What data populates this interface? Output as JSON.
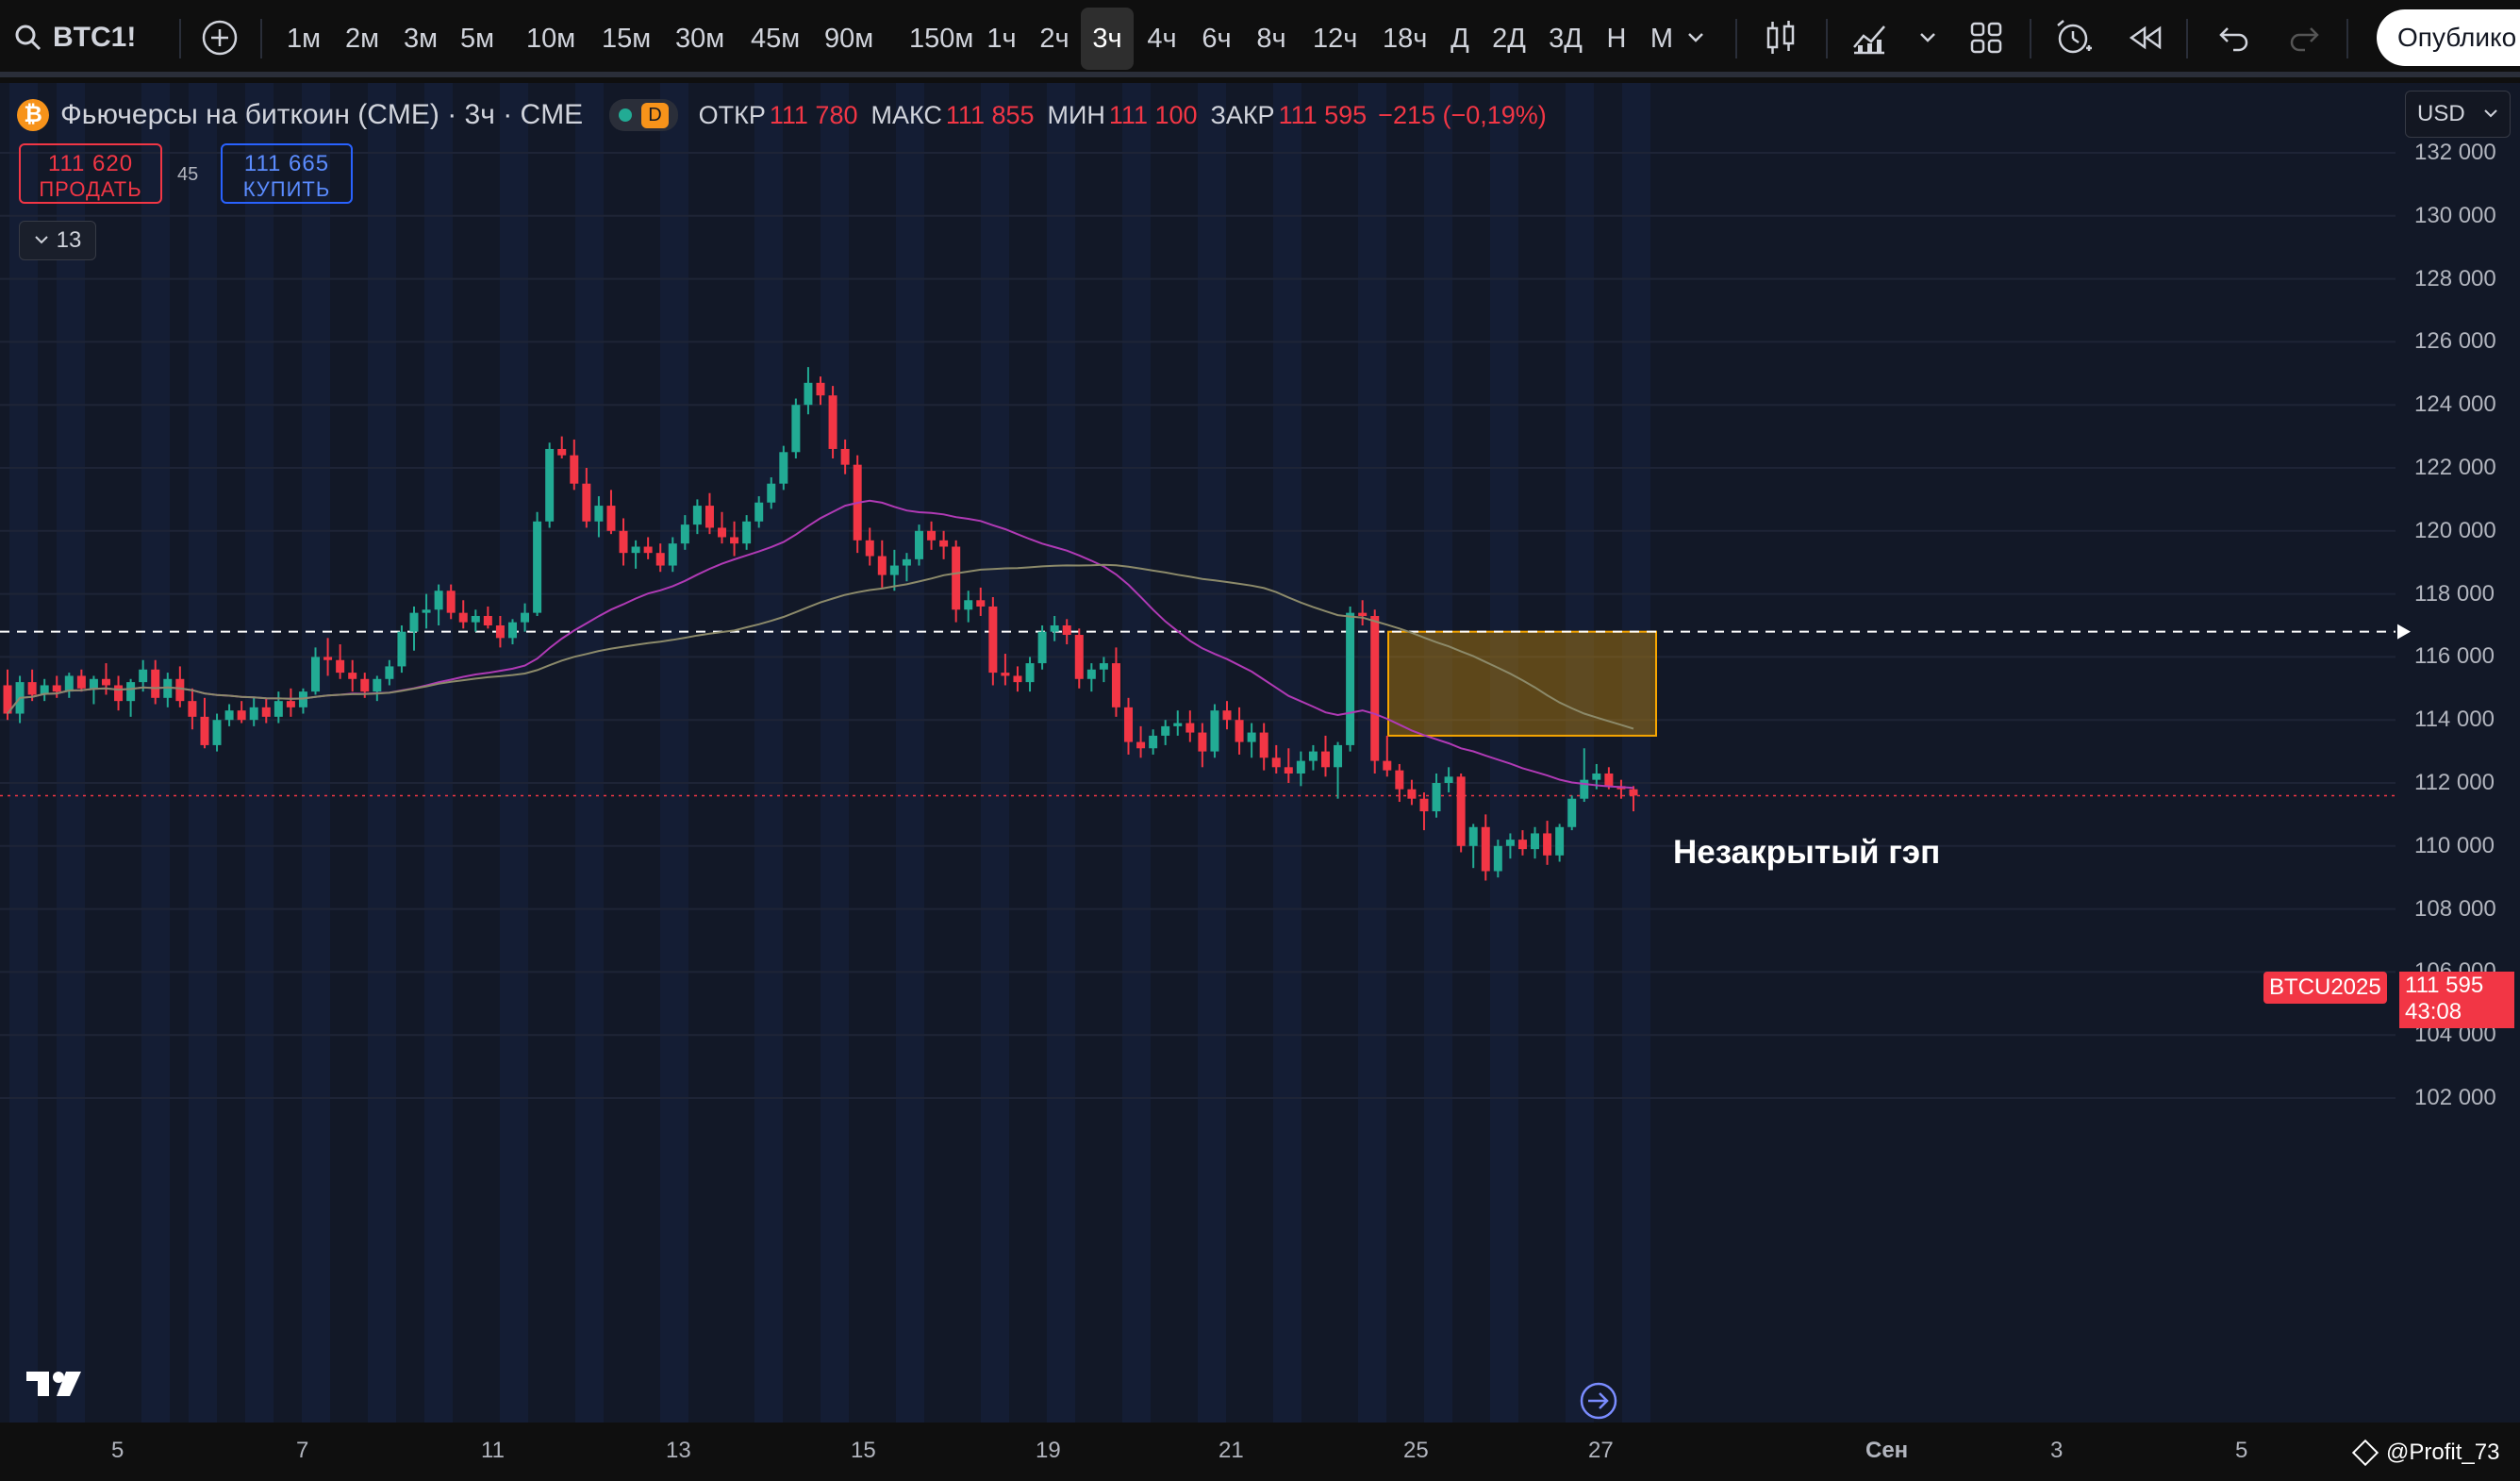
{
  "toolbar": {
    "symbol": "BTC1!",
    "timeframes": [
      "1м",
      "2м",
      "3м",
      "5м",
      "10м",
      "15м",
      "30м",
      "45м",
      "90м",
      "150м",
      "1ч",
      "2ч",
      "3ч",
      "4ч",
      "6ч",
      "8ч",
      "12ч",
      "18ч",
      "Д",
      "2Д",
      "3Д",
      "Н",
      "М"
    ],
    "active_timeframe": "3ч",
    "publish_label": "Опублико"
  },
  "legend": {
    "title": "Фьючерсы на биткоин (CME) · 3ч · CME",
    "badge": "D",
    "open_label": "ОТКР",
    "open": "111 780",
    "high_label": "МАКС",
    "high": "111 855",
    "low_label": "МИН",
    "low": "111 100",
    "close_label": "ЗАКР",
    "close": "111 595",
    "change": "−215 (−0,19%)"
  },
  "trade": {
    "sell_price": "111 620",
    "sell_label": "ПРОДАТЬ",
    "spread": "45",
    "buy_price": "111 665",
    "buy_label": "КУПИТЬ",
    "indicators_count": "13"
  },
  "currency": "USD",
  "annotation": "Незакрытый гэп",
  "price_axis": [
    "132 000",
    "130 000",
    "128 000",
    "126 000",
    "124 000",
    "122 000",
    "120 000",
    "118 000",
    "116 000",
    "114 000",
    "112 000",
    "110 000",
    "108 000",
    "106 000",
    "104 000",
    "102 000"
  ],
  "time_axis": [
    "5",
    "7",
    "11",
    "13",
    "15",
    "19",
    "21",
    "25",
    "27",
    "Сен",
    "3",
    "5"
  ],
  "last_price": {
    "contract": "BTCU2025",
    "price": "111 595",
    "countdown": "43:08"
  },
  "watermark": "@Profit_73",
  "colors": {
    "up": "#22ab94",
    "down": "#f23645",
    "bg": "#121827",
    "gap": "#f7a600",
    "ma_fast": "#b03ab5",
    "ma_slow": "#8c8a6a"
  },
  "chart_data": {
    "type": "candlestick",
    "ylim": [
      101000,
      133000
    ],
    "dashed_level": 116800,
    "gap_zone": {
      "from": 113500,
      "to": 116800
    },
    "candles": [
      [
        115100,
        115600,
        114000,
        114200
      ],
      [
        114200,
        115400,
        113900,
        115200
      ],
      [
        115200,
        115600,
        114600,
        114800
      ],
      [
        114800,
        115300,
        114600,
        115100
      ],
      [
        115100,
        115400,
        114700,
        114900
      ],
      [
        114900,
        115500,
        114700,
        115400
      ],
      [
        115400,
        115600,
        114900,
        115000
      ],
      [
        115000,
        115400,
        114500,
        115300
      ],
      [
        115300,
        115800,
        114800,
        115100
      ],
      [
        115100,
        115400,
        114300,
        114600
      ],
      [
        114600,
        115300,
        114100,
        115200
      ],
      [
        115200,
        115900,
        114900,
        115600
      ],
      [
        115600,
        115900,
        114500,
        114700
      ],
      [
        114700,
        115500,
        114400,
        115300
      ],
      [
        115300,
        115700,
        114400,
        114600
      ],
      [
        114600,
        115000,
        113700,
        114100
      ],
      [
        114100,
        114700,
        113100,
        113200
      ],
      [
        113200,
        114200,
        113000,
        114000
      ],
      [
        114000,
        114500,
        113800,
        114300
      ],
      [
        114300,
        114600,
        113900,
        114000
      ],
      [
        114000,
        114700,
        113800,
        114400
      ],
      [
        114400,
        114700,
        113900,
        114100
      ],
      [
        114100,
        114900,
        113900,
        114600
      ],
      [
        114600,
        115000,
        114100,
        114400
      ],
      [
        114400,
        115000,
        114200,
        114900
      ],
      [
        114900,
        116300,
        114800,
        116000
      ],
      [
        116000,
        116600,
        115400,
        115900
      ],
      [
        115900,
        116400,
        115300,
        115500
      ],
      [
        115500,
        115900,
        114900,
        115300
      ],
      [
        115300,
        115500,
        114700,
        114900
      ],
      [
        114900,
        115400,
        114600,
        115300
      ],
      [
        115300,
        115900,
        115100,
        115700
      ],
      [
        115700,
        117000,
        115500,
        116800
      ],
      [
        116800,
        117600,
        116200,
        117400
      ],
      [
        117400,
        118000,
        116900,
        117500
      ],
      [
        117500,
        118300,
        117000,
        118100
      ],
      [
        118100,
        118300,
        117200,
        117400
      ],
      [
        117400,
        117800,
        116900,
        117100
      ],
      [
        117100,
        117500,
        116800,
        117300
      ],
      [
        117300,
        117600,
        116900,
        117000
      ],
      [
        117000,
        117300,
        116300,
        116600
      ],
      [
        116600,
        117200,
        116400,
        117100
      ],
      [
        117100,
        117700,
        116800,
        117400
      ],
      [
        117400,
        120600,
        117300,
        120300
      ],
      [
        120300,
        122800,
        120100,
        122600
      ],
      [
        122600,
        123000,
        122300,
        122400
      ],
      [
        122400,
        122900,
        121300,
        121500
      ],
      [
        121500,
        122000,
        120100,
        120300
      ],
      [
        120300,
        121100,
        119800,
        120800
      ],
      [
        120800,
        121300,
        119900,
        120000
      ],
      [
        120000,
        120400,
        118900,
        119300
      ],
      [
        119300,
        119700,
        118800,
        119500
      ],
      [
        119500,
        119800,
        119100,
        119300
      ],
      [
        119300,
        119600,
        118700,
        118900
      ],
      [
        118900,
        119800,
        118700,
        119600
      ],
      [
        119600,
        120500,
        119400,
        120200
      ],
      [
        120200,
        121000,
        119900,
        120800
      ],
      [
        120800,
        121200,
        119900,
        120100
      ],
      [
        120100,
        120600,
        119600,
        119800
      ],
      [
        119800,
        120300,
        119200,
        119600
      ],
      [
        119600,
        120500,
        119400,
        120300
      ],
      [
        120300,
        121100,
        120100,
        120900
      ],
      [
        120900,
        121700,
        120700,
        121500
      ],
      [
        121500,
        122700,
        121300,
        122500
      ],
      [
        122500,
        124200,
        122300,
        124000
      ],
      [
        124000,
        125200,
        123700,
        124700
      ],
      [
        124700,
        124900,
        124000,
        124300
      ],
      [
        124300,
        124600,
        122300,
        122600
      ],
      [
        122600,
        122900,
        121800,
        122100
      ],
      [
        122100,
        122400,
        119300,
        119700
      ],
      [
        119700,
        120100,
        118900,
        119200
      ],
      [
        119200,
        119700,
        118200,
        118600
      ],
      [
        118600,
        119400,
        118100,
        118900
      ],
      [
        118900,
        119300,
        118400,
        119100
      ],
      [
        119100,
        120200,
        118900,
        120000
      ],
      [
        120000,
        120300,
        119400,
        119700
      ],
      [
        119700,
        120000,
        119100,
        119500
      ],
      [
        119500,
        119700,
        117100,
        117500
      ],
      [
        117500,
        118100,
        117100,
        117800
      ],
      [
        117800,
        118200,
        117300,
        117600
      ],
      [
        117600,
        117900,
        115100,
        115500
      ],
      [
        115500,
        116100,
        115100,
        115400
      ],
      [
        115400,
        115700,
        114900,
        115200
      ],
      [
        115200,
        116000,
        114900,
        115800
      ],
      [
        115800,
        117000,
        115600,
        116800
      ],
      [
        116800,
        117300,
        116500,
        117000
      ],
      [
        117000,
        117200,
        116400,
        116700
      ],
      [
        116700,
        116900,
        115000,
        115300
      ],
      [
        115300,
        115800,
        114900,
        115600
      ],
      [
        115600,
        116000,
        115200,
        115800
      ],
      [
        115800,
        116300,
        114100,
        114400
      ],
      [
        114400,
        114700,
        112900,
        113300
      ],
      [
        113300,
        113800,
        112800,
        113100
      ],
      [
        113100,
        113700,
        112900,
        113500
      ],
      [
        113500,
        114000,
        113200,
        113800
      ],
      [
        113800,
        114300,
        113500,
        113900
      ],
      [
        113900,
        114300,
        113300,
        113600
      ],
      [
        113600,
        113900,
        112500,
        113000
      ],
      [
        113000,
        114500,
        112800,
        114300
      ],
      [
        114300,
        114600,
        113700,
        114000
      ],
      [
        114000,
        114400,
        112900,
        113300
      ],
      [
        113300,
        113900,
        112800,
        113600
      ],
      [
        113600,
        113900,
        112400,
        112800
      ],
      [
        112800,
        113200,
        112300,
        112500
      ],
      [
        112500,
        113100,
        112000,
        112300
      ],
      [
        112300,
        113000,
        111900,
        112700
      ],
      [
        112700,
        113200,
        112400,
        113000
      ],
      [
        113000,
        113500,
        112200,
        112500
      ],
      [
        112500,
        113300,
        111500,
        113200
      ],
      [
        113200,
        117600,
        113000,
        117400
      ],
      [
        117400,
        117800,
        117000,
        117300
      ],
      [
        117300,
        117500,
        112300,
        112700
      ],
      [
        112700,
        113500,
        112200,
        112400
      ],
      [
        112400,
        112600,
        111400,
        111800
      ],
      [
        111800,
        112100,
        111300,
        111500
      ],
      [
        111500,
        111700,
        110500,
        111100
      ],
      [
        111100,
        112300,
        110900,
        112000
      ],
      [
        112000,
        112500,
        111700,
        112200
      ],
      [
        112200,
        112300,
        109800,
        110000
      ],
      [
        110000,
        110700,
        109300,
        110600
      ],
      [
        110600,
        111000,
        108900,
        109200
      ],
      [
        109200,
        110200,
        109000,
        110000
      ],
      [
        110000,
        110400,
        109600,
        110200
      ],
      [
        110200,
        110500,
        109700,
        109900
      ],
      [
        109900,
        110600,
        109600,
        110400
      ],
      [
        110400,
        110800,
        109400,
        109700
      ],
      [
        109700,
        110700,
        109500,
        110600
      ],
      [
        110600,
        111600,
        110500,
        111500
      ],
      [
        111500,
        113100,
        111400,
        112100
      ],
      [
        112100,
        112600,
        111800,
        112300
      ],
      [
        112300,
        112500,
        111800,
        111900
      ],
      [
        111900,
        112100,
        111500,
        111800
      ],
      [
        111800,
        111900,
        111100,
        111600
      ]
    ]
  }
}
